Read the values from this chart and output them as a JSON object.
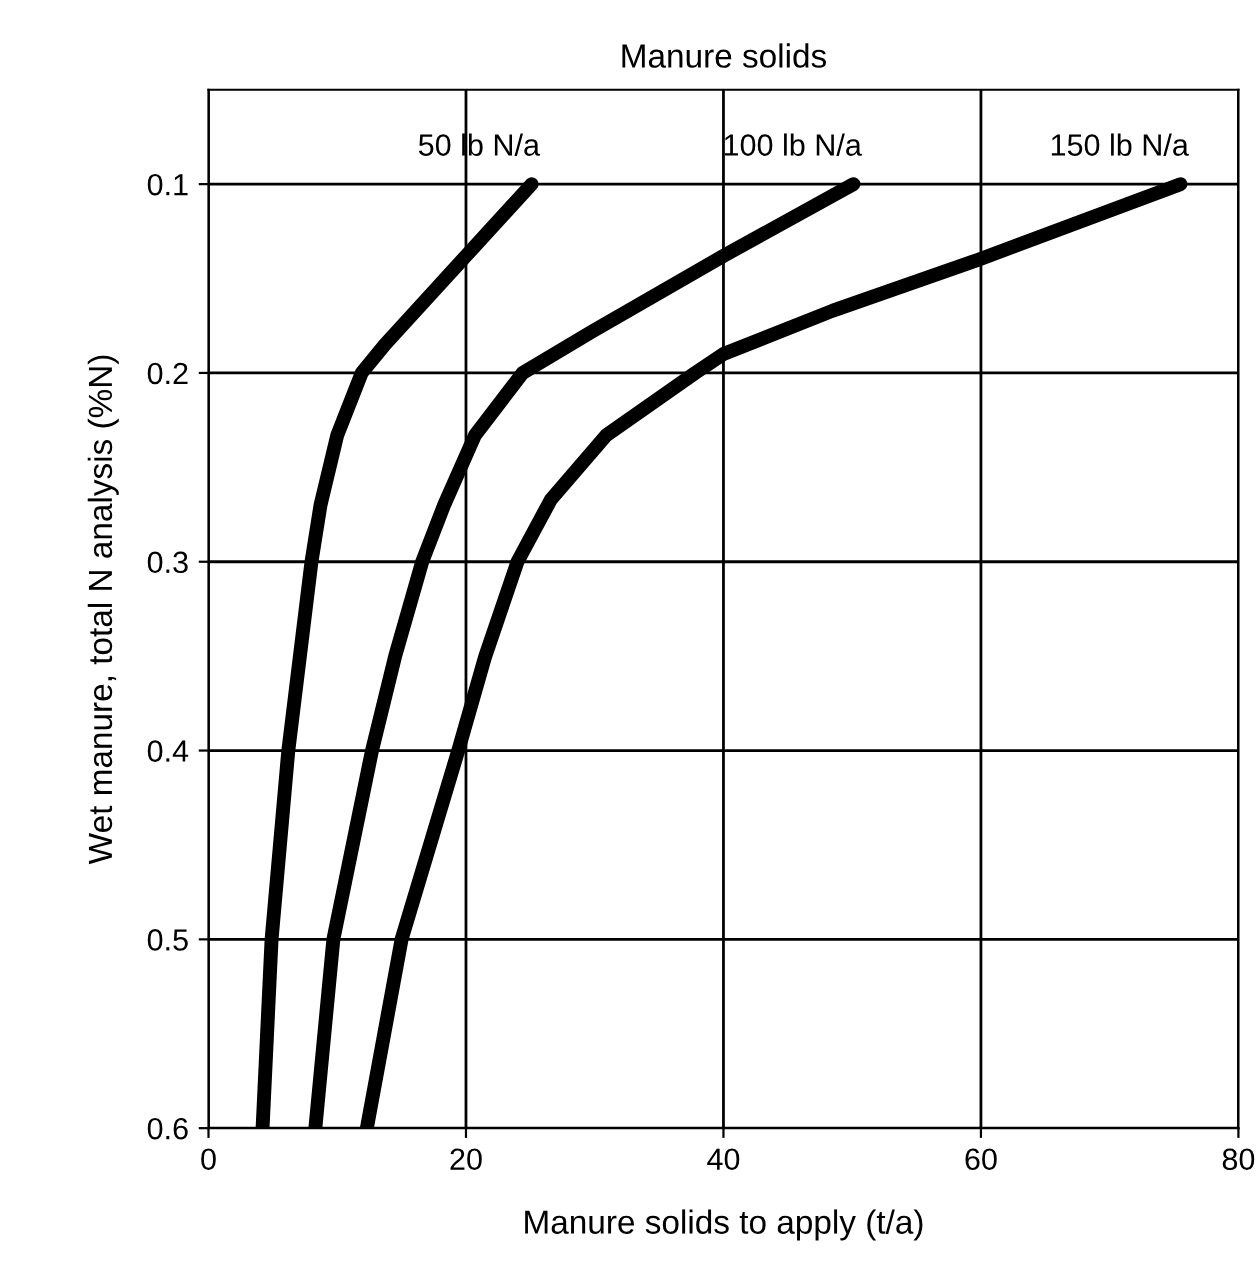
{
  "chart_data": {
    "type": "line",
    "title": "Manure solids",
    "xlabel": "Manure solids to apply (t/a)",
    "ylabel": "Wet manure, total N analysis (%N)",
    "xlim": [
      0,
      80
    ],
    "xticks": [
      0,
      20,
      40,
      60,
      80
    ],
    "ylim": [
      0.6,
      0.05
    ],
    "yticks": [
      0.1,
      0.2,
      0.3,
      0.4,
      0.5,
      0.6
    ],
    "grid": true,
    "legend": false,
    "marker": "none",
    "line_style": "solid",
    "series": [
      {
        "name": "50 lb N/a",
        "color": "#000000",
        "x": [
          25.1,
          20,
          13.7,
          11.9,
          10,
          8.7,
          8,
          7.1,
          6.2,
          4.9,
          4.2
        ],
        "values": [
          0.1,
          0.138,
          0.185,
          0.2,
          0.233,
          0.27,
          0.3,
          0.35,
          0.4,
          0.5,
          0.6
        ]
      },
      {
        "name": "100 lb N/a",
        "color": "#000000",
        "x": [
          50.1,
          40,
          29.8,
          24.4,
          20.7,
          18.3,
          16.6,
          14.5,
          12.7,
          9.7,
          8.3
        ],
        "values": [
          0.1,
          0.138,
          0.178,
          0.2,
          0.233,
          0.27,
          0.3,
          0.35,
          0.4,
          0.5,
          0.6
        ]
      },
      {
        "name": "150 lb N/a",
        "color": "#000000",
        "x": [
          75.5,
          59.8,
          48.5,
          40,
          37.8,
          30.9,
          26.6,
          24,
          21.5,
          19.4,
          15,
          12.3
        ],
        "values": [
          0.1,
          0.14,
          0.167,
          0.19,
          0.2,
          0.233,
          0.267,
          0.3,
          0.35,
          0.4,
          0.5,
          0.6
        ]
      }
    ]
  }
}
